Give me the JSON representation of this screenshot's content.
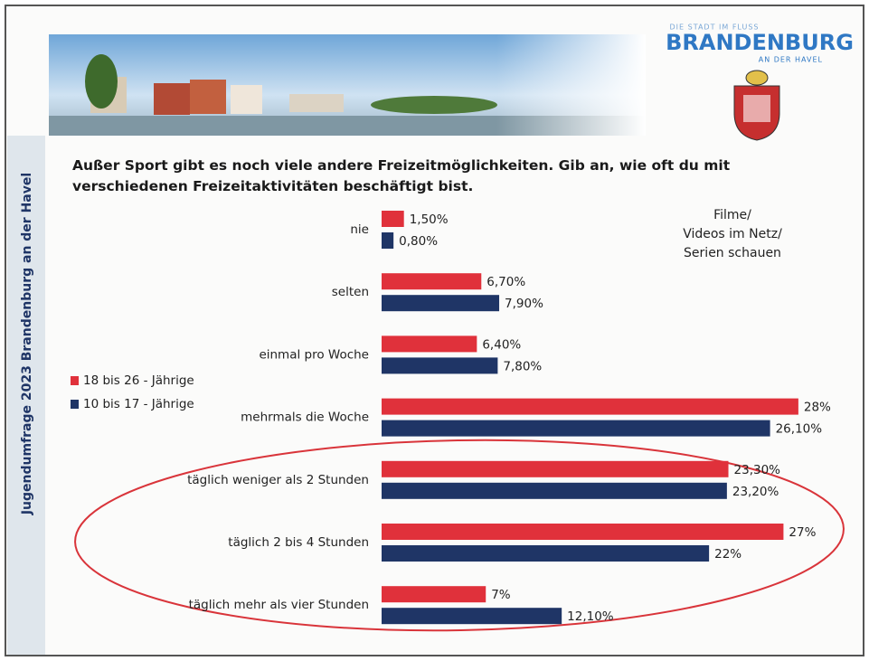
{
  "sidebar": "Jugendumfrage 2023 Brandenburg an der Havel",
  "logo": {
    "tagline": "DIE STADT IM FLUSS",
    "name": "BRANDENBURG",
    "sub": "AN DER HAVEL"
  },
  "chart_data": {
    "type": "hbar",
    "title": "Außer Sport gibt es noch viele andere Freizeitmöglichkeiten. Gib an, wie oft du mit verschiedenen Freizeitaktivitäten beschäftigt bist.",
    "subtitle": "Filme/\nVideos im Netz/\nSerien schauen",
    "categories": [
      "nie",
      "selten",
      "einmal pro Woche",
      "mehrmals die Woche",
      "täglich weniger als 2 Stunden",
      "täglich 2 bis 4 Stunden",
      "täglich mehr als vier Stunden"
    ],
    "series": [
      {
        "name": "18 bis 26 - Jährige",
        "color": "#e0313b",
        "values": [
          1.5,
          6.7,
          6.4,
          28,
          23.3,
          27,
          7
        ],
        "value_labels": [
          "1,50%",
          "6,70%",
          "6,40%",
          "28%",
          "23,30%",
          "27%",
          "7%"
        ]
      },
      {
        "name": "10 bis 17 - Jährige",
        "color": "#1f3566",
        "values": [
          0.8,
          7.9,
          7.8,
          26.1,
          23.2,
          22,
          12.1
        ],
        "value_labels": [
          "0,80%",
          "7,90%",
          "7,80%",
          "26,10%",
          "23,20%",
          "22%",
          "12,10%"
        ]
      }
    ]
  }
}
